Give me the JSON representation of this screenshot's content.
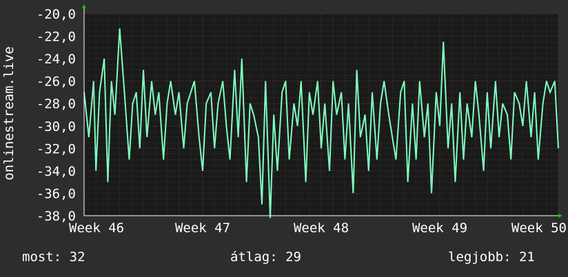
{
  "chart_data": {
    "type": "line",
    "ylabel": "onlinestream.live",
    "ylim": [
      -38,
      -20
    ],
    "yticks": [
      -20,
      -22,
      -24,
      -26,
      -28,
      -30,
      -32,
      -34,
      -36,
      -38
    ],
    "ytick_labels": [
      "-20,0",
      "-22,0",
      "-24,0",
      "-26,0",
      "-28,0",
      "-30,0",
      "-32,0",
      "-34,0",
      "-36,0",
      "-38,0"
    ],
    "xlim": [
      0,
      4
    ],
    "xticks": [
      0,
      1,
      2,
      3,
      4
    ],
    "xtick_labels": [
      "Week 46",
      "Week 47",
      "Week 48",
      "Week 49",
      "Week 50"
    ],
    "grid": true,
    "colors": {
      "line": "#7fffbf",
      "grid": "#555555",
      "background": "#1a1a1a",
      "arrow": "#00cc00"
    },
    "series": [
      {
        "x": [
          0.0,
          0.04,
          0.08,
          0.1,
          0.13,
          0.17,
          0.2,
          0.23,
          0.26,
          0.3,
          0.34,
          0.38,
          0.41,
          0.44,
          0.47,
          0.5,
          0.53,
          0.57,
          0.6,
          0.63,
          0.67,
          0.7,
          0.73,
          0.77,
          0.8,
          0.84,
          0.87,
          0.9,
          0.93,
          0.97,
          1.0,
          1.03,
          1.07,
          1.1,
          1.13,
          1.17,
          1.2,
          1.23,
          1.27,
          1.3,
          1.33,
          1.37,
          1.4,
          1.43,
          1.47,
          1.5,
          1.53,
          1.57,
          1.6,
          1.63,
          1.67,
          1.7,
          1.73,
          1.77,
          1.8,
          1.83,
          1.87,
          1.9,
          1.93,
          1.97,
          2.0,
          2.03,
          2.07,
          2.1,
          2.13,
          2.17,
          2.2,
          2.23,
          2.27,
          2.3,
          2.33,
          2.37,
          2.4,
          2.43,
          2.47,
          2.5,
          2.53,
          2.57,
          2.6,
          2.63,
          2.67,
          2.7,
          2.73,
          2.77,
          2.8,
          2.83,
          2.87,
          2.9,
          2.93,
          2.97,
          3.0,
          3.03,
          3.07,
          3.1,
          3.13,
          3.17,
          3.2,
          3.23,
          3.27,
          3.3,
          3.33,
          3.37,
          3.4,
          3.43,
          3.47,
          3.5,
          3.53,
          3.57,
          3.6,
          3.63,
          3.67,
          3.7,
          3.73,
          3.77,
          3.8,
          3.83,
          3.87,
          3.9,
          3.93,
          3.97,
          4.0
        ],
        "values": [
          -27,
          -31,
          -26,
          -34,
          -27,
          -24,
          -35,
          -26,
          -29,
          -21.3,
          -27,
          -33,
          -28,
          -27,
          -32,
          -25,
          -31,
          -26,
          -29,
          -27,
          -33,
          -28,
          -26,
          -29,
          -27,
          -32,
          -28,
          -27,
          -26,
          -31,
          -34,
          -28,
          -27,
          -32,
          -28,
          -26,
          -30,
          -33,
          -25,
          -31,
          -24,
          -35,
          -28,
          -29,
          -31,
          -37,
          -26,
          -38.2,
          -29,
          -34,
          -27,
          -26,
          -33,
          -28,
          -30,
          -26,
          -35,
          -27,
          -29,
          -26,
          -32,
          -28,
          -34,
          -26,
          -29,
          -27,
          -33,
          -28,
          -36,
          -25,
          -31,
          -29,
          -34,
          -27,
          -33,
          -28,
          -26,
          -29,
          -31,
          -33,
          -27,
          -26,
          -35,
          -28,
          -33,
          -26,
          -31,
          -28,
          -36,
          -27,
          -30,
          -22.5,
          -32,
          -28,
          -35,
          -27,
          -33,
          -28,
          -31,
          -26,
          -29,
          -34,
          -27,
          -32,
          -26,
          -31,
          -28,
          -29,
          -33,
          -27,
          -28,
          -30,
          -26,
          -31,
          -27,
          -33,
          -28,
          -26,
          -27,
          -26,
          -32
        ]
      }
    ],
    "stats": {
      "current_label": "most:",
      "current_value": "32",
      "avg_label": "átlag:",
      "avg_value": "29",
      "best_label": "legjobb:",
      "best_value": "21"
    }
  }
}
